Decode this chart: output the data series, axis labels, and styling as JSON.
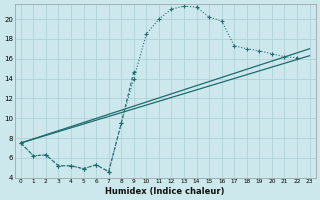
{
  "xlabel": "Humidex (Indice chaleur)",
  "bg_color": "#cce8ec",
  "grid_color": "#aacdd4",
  "line_color": "#1e6b6e",
  "xlim": [
    -0.5,
    23.5
  ],
  "ylim": [
    4,
    21.5
  ],
  "xticks": [
    0,
    1,
    2,
    3,
    4,
    5,
    6,
    7,
    8,
    9,
    10,
    11,
    12,
    13,
    14,
    15,
    16,
    17,
    18,
    19,
    20,
    21,
    22,
    23
  ],
  "yticks": [
    4,
    6,
    8,
    10,
    12,
    14,
    16,
    18,
    20
  ],
  "dotted_x": [
    0,
    1,
    2,
    3,
    4,
    5,
    6,
    7,
    8,
    9,
    10,
    11,
    12,
    13,
    14,
    15,
    16,
    17,
    18,
    19,
    20,
    21,
    22
  ],
  "dotted_y": [
    7.5,
    6.2,
    6.3,
    5.2,
    5.2,
    4.9,
    5.3,
    4.6,
    9.5,
    14.0,
    18.5,
    20.0,
    21.0,
    21.3,
    21.2,
    20.2,
    19.8,
    17.3,
    17.0,
    16.8,
    16.5,
    16.2,
    16.1
  ],
  "jagged_x": [
    0,
    1,
    2,
    3,
    4,
    5,
    6,
    7,
    8,
    9
  ],
  "jagged_y": [
    7.5,
    6.2,
    6.3,
    5.2,
    5.2,
    4.9,
    5.3,
    4.6,
    9.5,
    14.7
  ],
  "line1_x": [
    0,
    23
  ],
  "line1_y": [
    7.5,
    16.3
  ],
  "line2_x": [
    0,
    23
  ],
  "line2_y": [
    7.5,
    17.0
  ]
}
